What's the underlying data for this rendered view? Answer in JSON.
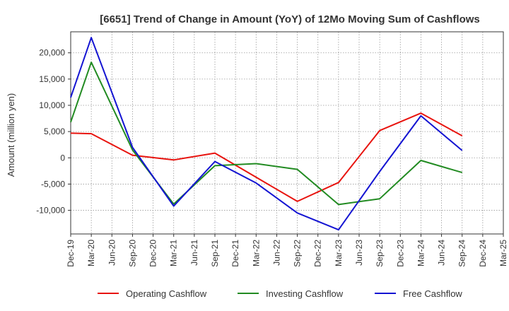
{
  "chart_data": {
    "type": "line",
    "title": "[6651]  Trend of Change in Amount (YoY) of 12Mo Moving Sum of Cashflows",
    "xlabel": "",
    "ylabel": "Amount (million yen)",
    "categories": [
      "Dec-19",
      "Mar-20",
      "Jun-20",
      "Sep-20",
      "Dec-20",
      "Mar-21",
      "Jun-21",
      "Sep-21",
      "Dec-21",
      "Mar-22",
      "Jun-22",
      "Sep-22",
      "Dec-22",
      "Mar-23",
      "Jun-23",
      "Sep-23",
      "Dec-23",
      "Mar-24",
      "Jun-24",
      "Sep-24",
      "Dec-24",
      "Mar-25"
    ],
    "ylim": [
      -14500,
      24000
    ],
    "yticks": [
      -10000,
      -5000,
      0,
      5000,
      10000,
      15000,
      20000
    ],
    "ytick_labels": [
      "-10,000",
      "-5,000",
      "0",
      "5,000",
      "10,000",
      "15,000",
      "20,000"
    ],
    "grid": true,
    "legend_position": "bottom",
    "series": [
      {
        "name": "Operating Cashflow",
        "color": "#e8140f",
        "values": [
          4700,
          4600,
          null,
          500,
          null,
          -400,
          null,
          900,
          null,
          -3700,
          null,
          -8300,
          null,
          -4700,
          null,
          5200,
          null,
          8500,
          null,
          4200,
          null,
          null
        ]
      },
      {
        "name": "Investing Cashflow",
        "color": "#228b22",
        "values": [
          6800,
          18200,
          null,
          1500,
          null,
          -8800,
          null,
          -1500,
          null,
          -1100,
          null,
          -2200,
          null,
          -8900,
          null,
          -7800,
          null,
          -500,
          null,
          -2800,
          null,
          null
        ]
      },
      {
        "name": "Free Cashflow",
        "color": "#1414d2",
        "values": [
          11500,
          22900,
          null,
          2000,
          null,
          -9200,
          null,
          -700,
          null,
          -4800,
          null,
          -10500,
          null,
          -13700,
          null,
          -2600,
          null,
          8000,
          null,
          1400,
          null,
          null
        ]
      }
    ]
  }
}
